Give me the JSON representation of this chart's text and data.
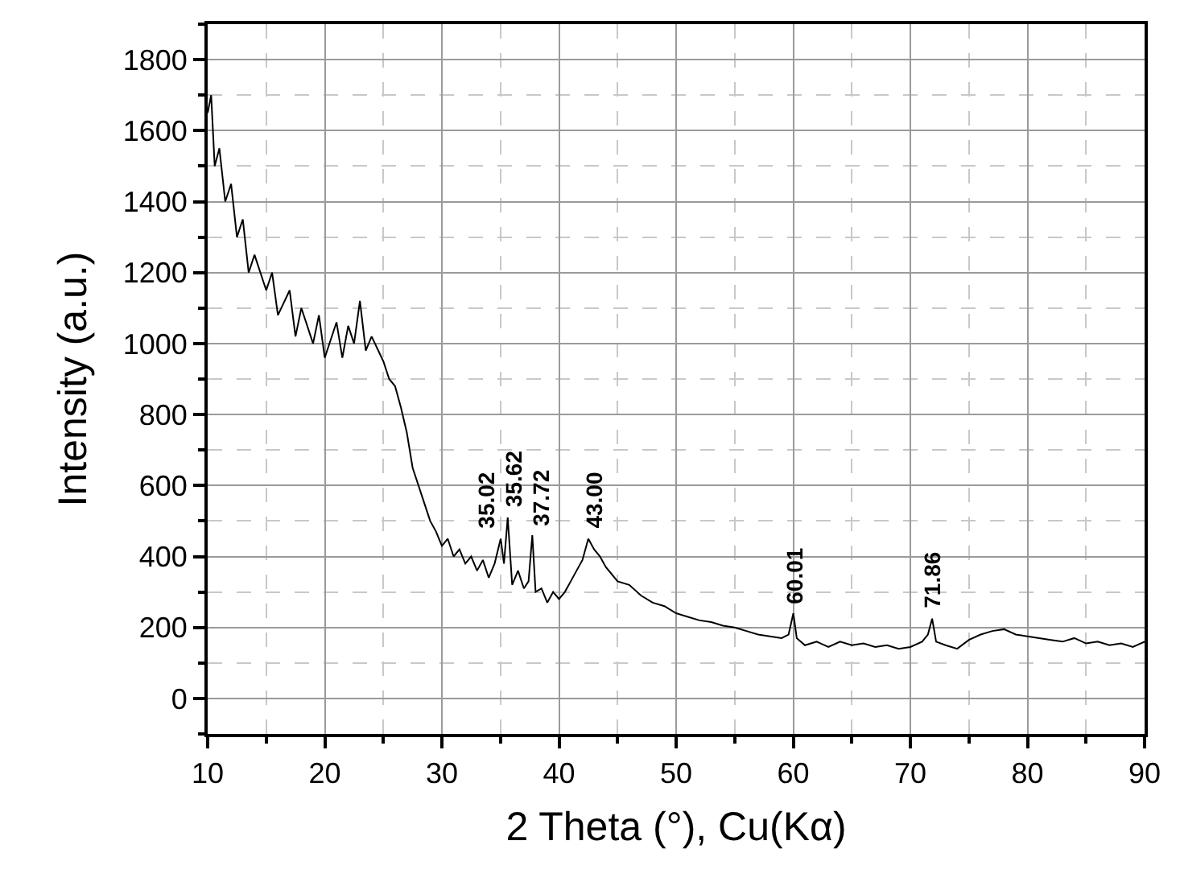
{
  "chart_data": {
    "type": "line",
    "xlabel": "2 Theta (°), Cu(Kα)",
    "ylabel": "Intensity (a.u.)",
    "xlim": [
      10,
      90
    ],
    "xticks": [
      10,
      20,
      30,
      40,
      50,
      60,
      70,
      80,
      90
    ],
    "ylim": [
      -100,
      1900
    ],
    "yticks": [
      0,
      200,
      400,
      600,
      800,
      1000,
      1200,
      1400,
      1600,
      1800
    ],
    "grid": true,
    "marker": "none",
    "line_style": "solid",
    "series": [
      {
        "color": "#000000",
        "x": [
          10,
          10.3,
          10.6,
          11,
          11.5,
          12,
          12.5,
          13,
          13.5,
          14,
          15,
          15.5,
          16,
          17,
          17.5,
          18,
          19,
          19.5,
          20,
          21,
          21.5,
          22,
          22.5,
          23,
          23.5,
          24,
          25,
          25.5,
          26,
          26.5,
          27,
          27.5,
          28,
          28.5,
          29,
          29.5,
          30,
          30.5,
          31,
          31.5,
          32,
          32.5,
          33,
          33.5,
          34,
          34.5,
          35.02,
          35.3,
          35.62,
          36,
          36.5,
          37,
          37.4,
          37.72,
          38,
          38.5,
          39,
          39.5,
          40,
          40.5,
          41,
          41.5,
          42,
          42.5,
          43,
          43.5,
          44,
          45,
          46,
          47,
          48,
          49,
          50,
          51,
          52,
          53,
          54,
          55,
          56,
          57,
          58,
          59,
          59.6,
          60.01,
          60.3,
          61,
          62,
          63,
          64,
          65,
          66,
          67,
          68,
          69,
          70,
          71,
          71.5,
          71.86,
          72.2,
          73,
          74,
          75,
          76,
          77,
          78,
          79,
          80,
          81,
          82,
          83,
          84,
          85,
          86,
          87,
          88,
          89,
          90
        ],
        "values": [
          1650,
          1700,
          1500,
          1550,
          1400,
          1450,
          1300,
          1350,
          1200,
          1250,
          1150,
          1200,
          1080,
          1150,
          1020,
          1100,
          1000,
          1080,
          960,
          1060,
          960,
          1050,
          1000,
          1120,
          980,
          1020,
          950,
          900,
          880,
          820,
          750,
          650,
          600,
          550,
          500,
          470,
          430,
          450,
          400,
          420,
          380,
          400,
          360,
          390,
          340,
          380,
          450,
          380,
          510,
          320,
          360,
          310,
          330,
          460,
          300,
          310,
          270,
          300,
          280,
          300,
          330,
          360,
          390,
          450,
          420,
          400,
          370,
          330,
          320,
          290,
          270,
          260,
          240,
          230,
          220,
          215,
          205,
          200,
          190,
          180,
          175,
          170,
          180,
          240,
          170,
          150,
          160,
          145,
          160,
          150,
          155,
          145,
          150,
          140,
          145,
          160,
          180,
          225,
          160,
          150,
          140,
          165,
          180,
          190,
          195,
          180,
          175,
          170,
          165,
          160,
          170,
          155,
          160,
          150,
          155,
          145,
          160
        ]
      }
    ],
    "annotations": [
      {
        "text": "35.02",
        "x": 35.02,
        "y": 450
      },
      {
        "text": "35.62",
        "x": 35.62,
        "y": 510
      },
      {
        "text": "37.72",
        "x": 37.72,
        "y": 460
      },
      {
        "text": "43.00",
        "x": 43.0,
        "y": 450
      },
      {
        "text": "60.01",
        "x": 60.01,
        "y": 240
      },
      {
        "text": "71.86",
        "x": 71.86,
        "y": 225
      }
    ]
  }
}
